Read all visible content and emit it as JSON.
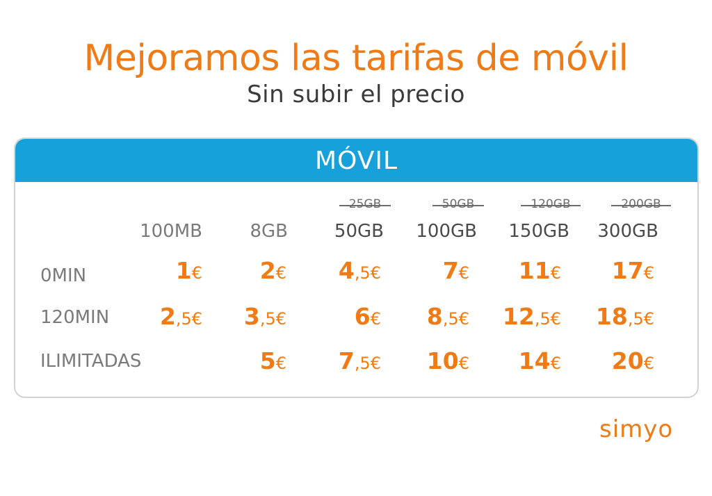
{
  "header": {
    "title": "Mejoramos las tarifas de móvil",
    "subtitle": "Sin subir el precio"
  },
  "card": {
    "title": "MÓVIL",
    "columns": [
      {
        "data": "100MB",
        "old": ""
      },
      {
        "data": "8GB",
        "old": ""
      },
      {
        "data": "50GB",
        "old": "25GB"
      },
      {
        "data": "100GB",
        "old": "50GB"
      },
      {
        "data": "150GB",
        "old": "120GB"
      },
      {
        "data": "300GB",
        "old": "200GB"
      }
    ],
    "rows": [
      {
        "label": "0MIN",
        "prices": [
          {
            "int": "1",
            "rest": "€"
          },
          {
            "int": "2",
            "rest": "€"
          },
          {
            "int": "4",
            "rest": ",5€"
          },
          {
            "int": "7",
            "rest": "€"
          },
          {
            "int": "11",
            "rest": "€"
          },
          {
            "int": "17",
            "rest": "€"
          }
        ]
      },
      {
        "label": "120MIN",
        "prices": [
          {
            "int": "2",
            "rest": ",5€"
          },
          {
            "int": "3",
            "rest": ",5€"
          },
          {
            "int": "6",
            "rest": "€"
          },
          {
            "int": "8",
            "rest": ",5€"
          },
          {
            "int": "12",
            "rest": ",5€"
          },
          {
            "int": "18",
            "rest": ",5€"
          }
        ]
      },
      {
        "label": "ILIMITADAS",
        "prices": [
          {
            "int": "",
            "rest": ""
          },
          {
            "int": "5",
            "rest": "€"
          },
          {
            "int": "7",
            "rest": ",5€"
          },
          {
            "int": "10",
            "rest": "€"
          },
          {
            "int": "14",
            "rest": "€"
          },
          {
            "int": "20",
            "rest": "€"
          }
        ]
      }
    ]
  },
  "brand": {
    "logo_text": "simyo",
    "accent_color": "#f07b16",
    "header_color": "#16a1db"
  }
}
